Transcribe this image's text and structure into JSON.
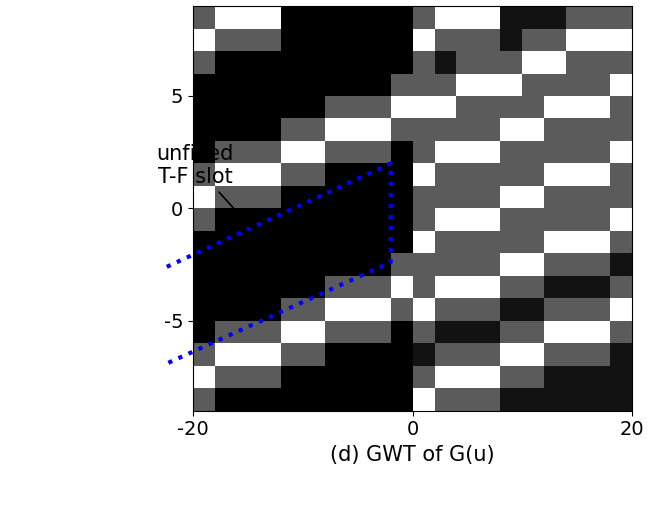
{
  "chart_data": {
    "type": "heatmap",
    "xlabel": "(d) GWT of G(u)",
    "color": "gray",
    "x": [
      -19,
      -17,
      -15,
      -13,
      -11,
      -9,
      -7,
      -5,
      -3,
      -1,
      1,
      3,
      5,
      7,
      9,
      11,
      13,
      15,
      17,
      19
    ],
    "y": [
      -8.5,
      -7.5,
      -6.5,
      -5.5,
      -4.5,
      -3.5,
      -2.5,
      -1.5,
      -0.5,
      0.5,
      1.5,
      2.5,
      3.5,
      4.5,
      5.5,
      6.5,
      7.5,
      8.5
    ],
    "cells": [
      [
        0.55,
        0.3,
        0.3,
        0.3,
        0.3,
        0.3,
        0.3,
        0.3,
        0.3,
        0.3,
        1,
        0.55,
        0.55,
        0.55,
        0.35,
        0.35,
        0.35,
        0.35,
        0.35,
        0.35
      ],
      [
        1,
        0.55,
        0.55,
        0.55,
        0.3,
        0.3,
        0.3,
        0.3,
        0.3,
        0.3,
        0.55,
        1,
        1,
        1,
        0.55,
        0.55,
        0.35,
        0.35,
        0.35,
        0.35
      ],
      [
        0.55,
        1,
        1,
        1,
        0.55,
        0.55,
        0.3,
        0.3,
        0.3,
        0.3,
        0.35,
        0.55,
        0.55,
        0.55,
        1,
        1,
        0.55,
        0.55,
        0.55,
        0.35
      ],
      [
        0.3,
        0.55,
        0.55,
        0.55,
        1,
        1,
        0.55,
        0.55,
        0.55,
        0.3,
        0.55,
        0.35,
        0.35,
        0.35,
        0.55,
        0.55,
        1,
        1,
        1,
        0.55
      ],
      [
        0.3,
        0.3,
        0.3,
        0.3,
        0.55,
        0.55,
        1,
        1,
        1,
        0.55,
        1,
        0.55,
        0.55,
        0.55,
        0.35,
        0.35,
        0.55,
        0.55,
        0.55,
        1
      ],
      [
        0.3,
        0.3,
        0.3,
        0.3,
        0.3,
        0.3,
        0.55,
        0.55,
        0.55,
        1,
        0.55,
        1,
        1,
        1,
        0.55,
        0.55,
        0.35,
        0.35,
        0.35,
        0.55
      ],
      [
        0.3,
        0.3,
        0.3,
        0.3,
        0.3,
        0.3,
        0.3,
        0.3,
        0.3,
        0.55,
        0.55,
        0.55,
        0.55,
        0.55,
        1,
        1,
        0.55,
        0.55,
        0.55,
        0.35
      ],
      [
        0.3,
        0.3,
        0.3,
        0.3,
        0.3,
        0.3,
        0.3,
        0.3,
        0.3,
        0.3,
        1,
        0.55,
        0.55,
        0.55,
        0.55,
        0.55,
        1,
        1,
        1,
        0.55
      ],
      [
        0.55,
        0.3,
        0.3,
        0.3,
        0.3,
        0.3,
        0.3,
        0.3,
        0.3,
        0.3,
        0.55,
        1,
        1,
        1,
        0.55,
        0.55,
        0.55,
        0.55,
        0.55,
        1
      ],
      [
        1,
        0.55,
        0.55,
        0.55,
        0.3,
        0.3,
        0.3,
        0.3,
        0.3,
        0.3,
        0.55,
        0.55,
        0.55,
        0.55,
        1,
        1,
        0.55,
        0.55,
        0.55,
        0.55
      ],
      [
        0.55,
        1,
        1,
        1,
        0.55,
        0.55,
        0.3,
        0.3,
        0.3,
        0.3,
        1,
        0.55,
        0.55,
        0.55,
        0.55,
        0.55,
        1,
        1,
        1,
        0.55
      ],
      [
        0.3,
        0.55,
        0.55,
        0.55,
        1,
        1,
        0.55,
        0.55,
        0.55,
        0.3,
        0.55,
        1,
        1,
        1,
        0.55,
        0.55,
        0.55,
        0.55,
        0.55,
        1
      ],
      [
        0.3,
        0.3,
        0.3,
        0.3,
        0.55,
        0.55,
        1,
        1,
        1,
        0.55,
        0.55,
        0.55,
        0.55,
        0.55,
        1,
        1,
        0.55,
        0.55,
        0.55,
        0.55
      ],
      [
        0.3,
        0.3,
        0.3,
        0.3,
        0.3,
        0.3,
        0.55,
        0.55,
        0.55,
        1,
        1,
        1,
        0.55,
        0.55,
        0.55,
        0.55,
        1,
        1,
        1,
        0.55
      ],
      [
        0.3,
        0.3,
        0.3,
        0.3,
        0.3,
        0.3,
        0.3,
        0.3,
        0.3,
        0.55,
        0.55,
        0.55,
        1,
        1,
        1,
        0.55,
        0.55,
        0.55,
        0.55,
        1
      ],
      [
        0.55,
        0.3,
        0.3,
        0.3,
        0.3,
        0.3,
        0.3,
        0.3,
        0.3,
        0.3,
        0.55,
        0.35,
        0.55,
        0.55,
        0.55,
        1,
        1,
        0.55,
        0.55,
        0.55
      ],
      [
        1,
        0.55,
        0.55,
        0.55,
        0.3,
        0.3,
        0.3,
        0.3,
        0.3,
        0.3,
        1,
        0.55,
        0.55,
        0.55,
        0.35,
        0.55,
        0.55,
        1,
        1,
        1
      ],
      [
        0.55,
        1,
        1,
        1,
        0.3,
        0.3,
        0.3,
        0.3,
        0.3,
        0.3,
        0.55,
        1,
        1,
        1,
        0.35,
        0.35,
        0.35,
        0.55,
        0.55,
        0.55
      ]
    ],
    "xlim": [
      -20,
      20
    ],
    "ylim": [
      -9,
      9
    ],
    "xticks": [
      -20,
      0,
      20
    ],
    "yticks": [
      -5,
      0,
      5
    ],
    "annotations": [
      {
        "text": "unfilled\nT-F slot",
        "x": -19.8,
        "y": 1.9,
        "arrow_to": [
          -13,
          -1.8
        ]
      }
    ],
    "region": {
      "color": "#0000ff",
      "line_style": "dotted",
      "points": [
        [
          -22.4,
          -2.6
        ],
        [
          -2,
          2
        ],
        [
          -2,
          -2.4
        ],
        [
          -22.4,
          -6.9
        ]
      ]
    }
  }
}
